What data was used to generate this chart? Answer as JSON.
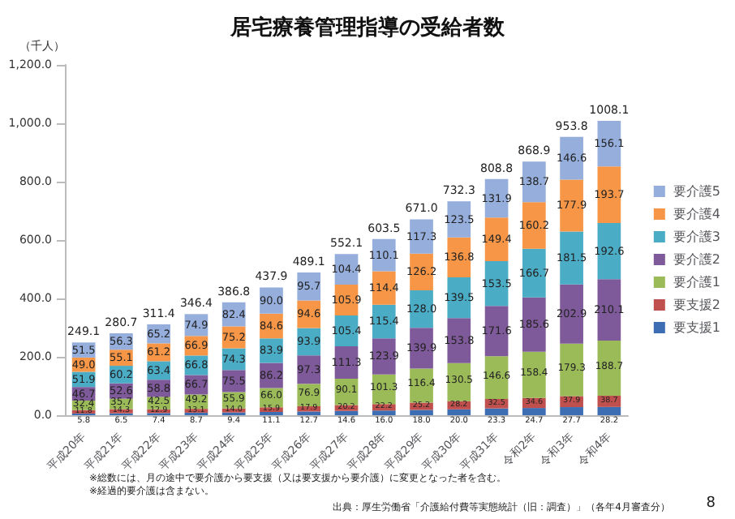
{
  "chart_data": {
    "type": "bar",
    "title": "居宅療養管理指導の受給者数",
    "ylabel": "（千人）",
    "stacked": true,
    "grid": false,
    "legend": "right",
    "categories": [
      "平成20年",
      "平成21年",
      "平成22年",
      "平成23年",
      "平成24年",
      "平成25年",
      "平成26年",
      "平成27年",
      "平成28年",
      "平成29年",
      "平成30年",
      "平成31年",
      "令和2年",
      "令和3年",
      "令和4年"
    ],
    "series": [
      {
        "name": "要支援1",
        "color": "#3d6eb4",
        "values": [
          5.8,
          6.5,
          7.4,
          8.7,
          9.4,
          11.1,
          12.7,
          14.6,
          16.0,
          18.0,
          20.0,
          23.3,
          24.7,
          27.7,
          28.2
        ],
        "value_labels": [
          "5.8",
          "6.5",
          "7.4",
          "8.7",
          "9.4",
          "11.1",
          "12.7",
          "14.6",
          "16.0",
          "18.0",
          "20.0",
          "23.3",
          "24.7",
          "27.7",
          "28.2"
        ]
      },
      {
        "name": "要支援2",
        "color": "#c0504d",
        "values": [
          11.8,
          14.3,
          12.9,
          13.1,
          14.0,
          15.9,
          17.9,
          20.2,
          22.2,
          25.2,
          28.2,
          32.5,
          34.6,
          37.9,
          38.7
        ],
        "value_labels": [
          "11.8",
          "14.3",
          "12.9",
          "13.1",
          "14.0",
          "15.9",
          "17.9",
          "20.2",
          "22.2",
          "25.2",
          "28.2",
          "32.5",
          "34.6",
          "37.9",
          "38.7"
        ]
      },
      {
        "name": "要介護1",
        "color": "#9bbb59",
        "values": [
          32.4,
          35.7,
          42.5,
          49.2,
          55.9,
          66.0,
          76.9,
          90.1,
          101.3,
          116.4,
          130.5,
          146.6,
          158.4,
          179.3,
          188.7
        ],
        "value_labels": [
          "32.4",
          "35.7",
          "42.5",
          "49.2",
          "55.9",
          "66.0",
          "76.9",
          "90.1",
          "101.3",
          "116.4",
          "130.5",
          "146.6",
          "158.4",
          "179.3",
          "188.7"
        ]
      },
      {
        "name": "要介護2",
        "color": "#7f5a9a",
        "values": [
          46.7,
          52.6,
          58.8,
          66.7,
          75.5,
          86.2,
          97.3,
          111.3,
          123.9,
          139.9,
          153.8,
          171.6,
          185.6,
          202.9,
          210.1
        ],
        "value_labels": [
          "46.7",
          "52.6",
          "58.8",
          "66.7",
          "75.5",
          "86.2",
          "97.3",
          "111.3",
          "123.9",
          "139.9",
          "153.8",
          "171.6",
          "185.6",
          "202.9",
          "210.1"
        ]
      },
      {
        "name": "要介護3",
        "color": "#4bacc6",
        "values": [
          51.9,
          60.2,
          63.4,
          66.8,
          74.3,
          83.9,
          93.9,
          105.4,
          115.4,
          128.0,
          139.5,
          153.5,
          166.7,
          181.5,
          192.6
        ],
        "value_labels": [
          "51.9",
          "60.2",
          "63.4",
          "66.8",
          "74.3",
          "83.9",
          "93.9",
          "105.4",
          "115.4",
          "128.0",
          "139.5",
          "153.5",
          "166.7",
          "181.5",
          "192.6"
        ]
      },
      {
        "name": "要介護4",
        "color": "#f79646",
        "values": [
          49.0,
          55.1,
          61.2,
          66.9,
          75.2,
          84.6,
          94.6,
          105.9,
          114.4,
          126.2,
          136.8,
          149.4,
          160.2,
          177.9,
          193.7
        ],
        "value_labels": [
          "49.0",
          "55.1",
          "61.2",
          "66.9",
          "75.2",
          "84.6",
          "94.6",
          "105.9",
          "114.4",
          "126.2",
          "136.8",
          "149.4",
          "160.2",
          "177.9",
          "193.7"
        ]
      },
      {
        "name": "要介護5",
        "color": "#95aedc",
        "values": [
          51.5,
          56.3,
          65.2,
          74.9,
          82.4,
          90.0,
          95.7,
          104.4,
          110.1,
          117.3,
          123.5,
          131.9,
          138.7,
          146.6,
          156.1
        ],
        "value_labels": [
          "51.5",
          "56.3",
          "65.2",
          "74.9",
          "82.4",
          "90.0",
          "95.7",
          "104.4",
          "110.1",
          "117.3",
          "123.5",
          "131.9",
          "138.7",
          "146.6",
          "156.1"
        ]
      }
    ],
    "totals": [
      "249.1",
      "280.7",
      "311.4",
      "346.4",
      "386.8",
      "437.9",
      "489.1",
      "552.1",
      "603.5",
      "671.0",
      "732.3",
      "808.8",
      "868.9",
      "953.8",
      "1008.1"
    ],
    "ylim": [
      0,
      1200
    ],
    "yticks": [
      {
        "value": 0,
        "label": "0.0"
      },
      {
        "value": 200,
        "label": "200.0"
      },
      {
        "value": 400,
        "label": "400.0"
      },
      {
        "value": 600,
        "label": "600.0"
      },
      {
        "value": 800,
        "label": "800.0"
      },
      {
        "value": 1000,
        "label": "1,000.0"
      },
      {
        "value": 1200,
        "label": "1,200.0"
      }
    ],
    "annotations": [
      "※総数には、月の途中で要介護から要支援（又は要支援から要介護）に変更となった者を含む。",
      "※経過的要介護は含まない。",
      "出典：厚生労働省「介護給付費等実態統計（旧：調査）」（各年4月審査分）",
      "8"
    ]
  }
}
